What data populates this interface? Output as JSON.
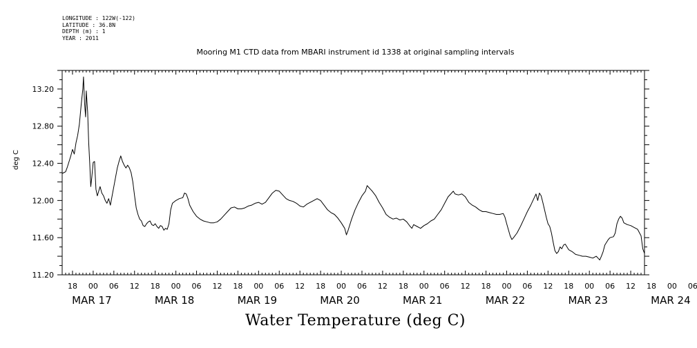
{
  "header": {
    "longitude": "LONGITUDE : 122W(-122)",
    "latitude": "LATITUDE : 36.8N",
    "depth": "DEPTH (m) : 1",
    "year": "YEAR : 2011"
  },
  "chart_data": {
    "type": "line",
    "title": "Mooring M1 CTD data from MBARI instrument id 1338 at original sampling intervals",
    "xlabel": "Water Temperature (deg C)",
    "ylabel": "deg C",
    "ylim": [
      11.2,
      13.4
    ],
    "yticks": [
      "11.20",
      "11.60",
      "12.00",
      "12.40",
      "12.80",
      "13.20"
    ],
    "xlim_hours": [
      -9,
      160
    ],
    "hour_ticks": [
      "18",
      "00",
      "06",
      "12",
      "18",
      "00",
      "06",
      "12",
      "18",
      "00",
      "06",
      "12",
      "18",
      "00",
      "06",
      "12",
      "18",
      "00",
      "06",
      "12",
      "18",
      "00",
      "06",
      "12",
      "18",
      "00",
      "06",
      "12",
      "18",
      "00",
      "06",
      "12"
    ],
    "day_labels": [
      "MAR 17",
      "MAR 18",
      "MAR 19",
      "MAR 20",
      "MAR 21",
      "MAR 22",
      "MAR 23",
      "MAR 24"
    ],
    "grid": false,
    "series": [
      {
        "points": [
          [
            -9,
            12.29
          ],
          [
            -8.5,
            12.3
          ],
          [
            -8,
            12.31
          ],
          [
            -7.5,
            12.36
          ],
          [
            -7,
            12.42
          ],
          [
            -6.5,
            12.48
          ],
          [
            -6,
            12.55
          ],
          [
            -5.5,
            12.5
          ],
          [
            -5,
            12.62
          ],
          [
            -4.5,
            12.7
          ],
          [
            -4,
            12.82
          ],
          [
            -3.5,
            13.02
          ],
          [
            -3,
            13.2
          ],
          [
            -2.8,
            13.33
          ],
          [
            -2.5,
            13.05
          ],
          [
            -2.2,
            12.9
          ],
          [
            -2,
            13.18
          ],
          [
            -1.6,
            12.95
          ],
          [
            -1.3,
            12.62
          ],
          [
            -1,
            12.4
          ],
          [
            -0.7,
            12.15
          ],
          [
            -0.4,
            12.25
          ],
          [
            0,
            12.41
          ],
          [
            0.4,
            12.42
          ],
          [
            0.8,
            12.12
          ],
          [
            1.2,
            12.05
          ],
          [
            1.6,
            12.1
          ],
          [
            2,
            12.15
          ],
          [
            2.5,
            12.08
          ],
          [
            3,
            12.05
          ],
          [
            3.5,
            12.0
          ],
          [
            4,
            11.97
          ],
          [
            4.5,
            12.02
          ],
          [
            5,
            11.95
          ],
          [
            5.5,
            12.05
          ],
          [
            6,
            12.15
          ],
          [
            6.5,
            12.25
          ],
          [
            7,
            12.35
          ],
          [
            7.5,
            12.42
          ],
          [
            8,
            12.48
          ],
          [
            8.5,
            12.42
          ],
          [
            9,
            12.38
          ],
          [
            9.5,
            12.35
          ],
          [
            10,
            12.38
          ],
          [
            10.5,
            12.35
          ],
          [
            11,
            12.3
          ],
          [
            11.5,
            12.2
          ],
          [
            12,
            12.05
          ],
          [
            12.5,
            11.92
          ],
          [
            13,
            11.85
          ],
          [
            13.5,
            11.8
          ],
          [
            14,
            11.78
          ],
          [
            14.5,
            11.73
          ],
          [
            15,
            11.72
          ],
          [
            15.5,
            11.75
          ],
          [
            16,
            11.77
          ],
          [
            16.5,
            11.78
          ],
          [
            17,
            11.74
          ],
          [
            17.5,
            11.73
          ],
          [
            18,
            11.75
          ],
          [
            18.5,
            11.72
          ],
          [
            19,
            11.7
          ],
          [
            19.5,
            11.73
          ],
          [
            20,
            11.72
          ],
          [
            20.5,
            11.68
          ],
          [
            21,
            11.7
          ],
          [
            21.5,
            11.69
          ],
          [
            22,
            11.75
          ],
          [
            22.5,
            11.9
          ],
          [
            23,
            11.97
          ],
          [
            24,
            12.0
          ],
          [
            25,
            12.02
          ],
          [
            26,
            12.03
          ],
          [
            26.5,
            12.08
          ],
          [
            27,
            12.07
          ],
          [
            27.5,
            12.02
          ],
          [
            28,
            11.95
          ],
          [
            29,
            11.88
          ],
          [
            30,
            11.83
          ],
          [
            31,
            11.8
          ],
          [
            32,
            11.78
          ],
          [
            33,
            11.77
          ],
          [
            34,
            11.76
          ],
          [
            35,
            11.76
          ],
          [
            36,
            11.77
          ],
          [
            37,
            11.8
          ],
          [
            38,
            11.84
          ],
          [
            39,
            11.88
          ],
          [
            40,
            11.92
          ],
          [
            41,
            11.93
          ],
          [
            42,
            11.91
          ],
          [
            43,
            11.91
          ],
          [
            44,
            11.92
          ],
          [
            45,
            11.94
          ],
          [
            46,
            11.95
          ],
          [
            47,
            11.97
          ],
          [
            48,
            11.98
          ],
          [
            49,
            11.96
          ],
          [
            50,
            11.98
          ],
          [
            51,
            12.03
          ],
          [
            52,
            12.08
          ],
          [
            53,
            12.11
          ],
          [
            54,
            12.1
          ],
          [
            55,
            12.06
          ],
          [
            56,
            12.02
          ],
          [
            57,
            12.0
          ],
          [
            58,
            11.99
          ],
          [
            59,
            11.97
          ],
          [
            60,
            11.94
          ],
          [
            61,
            11.93
          ],
          [
            62,
            11.96
          ],
          [
            63,
            11.98
          ],
          [
            64,
            12.0
          ],
          [
            65,
            12.02
          ],
          [
            66,
            12.0
          ],
          [
            67,
            11.95
          ],
          [
            68,
            11.9
          ],
          [
            69,
            11.87
          ],
          [
            70,
            11.85
          ],
          [
            71,
            11.81
          ],
          [
            72,
            11.76
          ],
          [
            73,
            11.7
          ],
          [
            73.5,
            11.63
          ],
          [
            74,
            11.68
          ],
          [
            75,
            11.8
          ],
          [
            76,
            11.9
          ],
          [
            77,
            11.98
          ],
          [
            78,
            12.05
          ],
          [
            79,
            12.1
          ],
          [
            79.5,
            12.16
          ],
          [
            80,
            12.14
          ],
          [
            80.5,
            12.12
          ],
          [
            81,
            12.1
          ],
          [
            82,
            12.05
          ],
          [
            83,
            11.98
          ],
          [
            84,
            11.92
          ],
          [
            85,
            11.85
          ],
          [
            86,
            11.82
          ],
          [
            87,
            11.8
          ],
          [
            88,
            11.81
          ],
          [
            89,
            11.79
          ],
          [
            90,
            11.8
          ],
          [
            91,
            11.77
          ],
          [
            92,
            11.72
          ],
          [
            92.5,
            11.7
          ],
          [
            93,
            11.74
          ],
          [
            94,
            11.72
          ],
          [
            95,
            11.7
          ],
          [
            96,
            11.73
          ],
          [
            97,
            11.75
          ],
          [
            98,
            11.78
          ],
          [
            99,
            11.8
          ],
          [
            100,
            11.85
          ],
          [
            101,
            11.9
          ],
          [
            102,
            11.97
          ],
          [
            103,
            12.04
          ],
          [
            104,
            12.08
          ],
          [
            104.5,
            12.1
          ],
          [
            105,
            12.07
          ],
          [
            106,
            12.06
          ],
          [
            107,
            12.07
          ],
          [
            108,
            12.04
          ],
          [
            109,
            11.98
          ],
          [
            110,
            11.95
          ],
          [
            111,
            11.93
          ],
          [
            112,
            11.9
          ],
          [
            113,
            11.88
          ],
          [
            114,
            11.88
          ],
          [
            115,
            11.87
          ],
          [
            116,
            11.86
          ],
          [
            117,
            11.85
          ],
          [
            118,
            11.85
          ],
          [
            119,
            11.86
          ],
          [
            119.5,
            11.82
          ],
          [
            120,
            11.75
          ],
          [
            121,
            11.62
          ],
          [
            121.5,
            11.58
          ],
          [
            122,
            11.6
          ],
          [
            123,
            11.65
          ],
          [
            124,
            11.72
          ],
          [
            125,
            11.8
          ],
          [
            126,
            11.88
          ],
          [
            127,
            11.95
          ],
          [
            128,
            12.03
          ],
          [
            128.5,
            12.07
          ],
          [
            129,
            12.0
          ],
          [
            129.5,
            12.08
          ],
          [
            130,
            12.05
          ],
          [
            130.5,
            11.98
          ],
          [
            131,
            11.9
          ],
          [
            131.5,
            11.82
          ],
          [
            132,
            11.75
          ],
          [
            132.5,
            11.72
          ],
          [
            133,
            11.65
          ],
          [
            133.5,
            11.55
          ],
          [
            134,
            11.46
          ],
          [
            134.5,
            11.43
          ],
          [
            135,
            11.45
          ],
          [
            135.5,
            11.5
          ],
          [
            136,
            11.48
          ],
          [
            136.5,
            11.52
          ],
          [
            137,
            11.53
          ],
          [
            137.5,
            11.5
          ],
          [
            138,
            11.47
          ],
          [
            139,
            11.45
          ],
          [
            140,
            11.42
          ],
          [
            141,
            11.41
          ],
          [
            142,
            11.4
          ],
          [
            143,
            11.4
          ],
          [
            144,
            11.39
          ],
          [
            145,
            11.38
          ],
          [
            146,
            11.4
          ],
          [
            146.5,
            11.38
          ],
          [
            147,
            11.36
          ],
          [
            147.5,
            11.4
          ],
          [
            148,
            11.45
          ],
          [
            148.5,
            11.52
          ],
          [
            149,
            11.55
          ],
          [
            149.5,
            11.58
          ],
          [
            150,
            11.6
          ]
        ]
      }
    ]
  }
}
